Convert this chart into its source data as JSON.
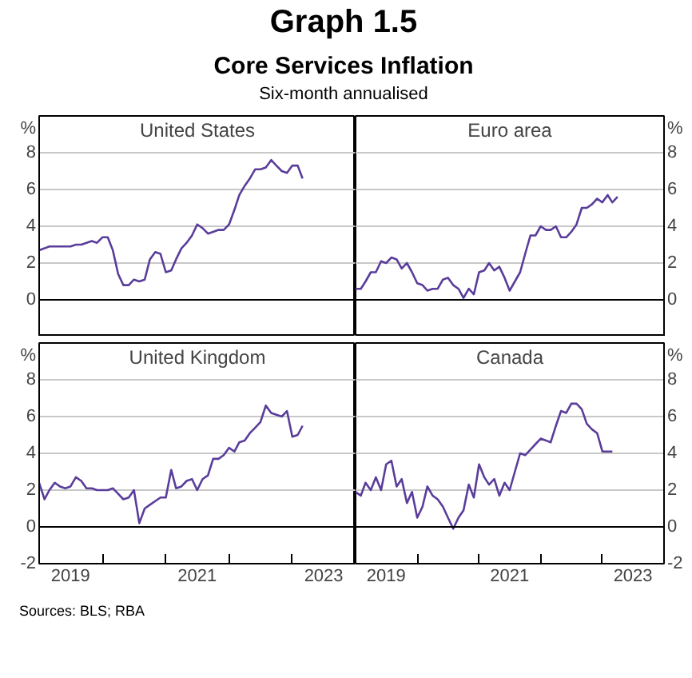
{
  "chart_data": [
    {
      "type": "other",
      "title": "Graph 1.5",
      "subtitle": "Core Services Inflation",
      "annotations": [
        "Six-month annualised",
        "Sources: BLS; RBA"
      ]
    },
    {
      "type": "line",
      "title": "United States",
      "ylabel": "%",
      "xlim": [
        "2019-01",
        "2024-01"
      ],
      "ylim": [
        -2,
        10
      ],
      "yticks": [
        0,
        2,
        4,
        6,
        8
      ],
      "grid": "y",
      "tick_labels": "y",
      "ref_lines": [
        {
          "axis": "y",
          "value": 0,
          "color": "#000000"
        }
      ],
      "x": [
        "2019-01",
        "2019-02",
        "2019-03",
        "2019-04",
        "2019-05",
        "2019-06",
        "2019-07",
        "2019-08",
        "2019-09",
        "2019-10",
        "2019-11",
        "2019-12",
        "2020-01",
        "2020-02",
        "2020-03",
        "2020-04",
        "2020-05",
        "2020-06",
        "2020-07",
        "2020-08",
        "2020-09",
        "2020-10",
        "2020-11",
        "2020-12",
        "2021-01",
        "2021-02",
        "2021-03",
        "2021-04",
        "2021-05",
        "2021-06",
        "2021-07",
        "2021-08",
        "2021-09",
        "2021-10",
        "2021-11",
        "2021-12",
        "2022-01",
        "2022-02",
        "2022-03",
        "2022-04",
        "2022-05",
        "2022-06",
        "2022-07",
        "2022-08",
        "2022-09",
        "2022-10",
        "2022-11",
        "2022-12",
        "2023-01",
        "2023-02",
        "2023-03"
      ],
      "series": [
        {
          "color": "#5a3d9a",
          "values": [
            2.7,
            2.8,
            2.9,
            2.9,
            2.9,
            2.9,
            2.9,
            3.0,
            3.0,
            3.1,
            3.2,
            3.1,
            3.4,
            3.4,
            2.7,
            1.4,
            0.8,
            0.8,
            1.1,
            1.0,
            1.1,
            2.2,
            2.6,
            2.5,
            1.5,
            1.6,
            2.2,
            2.8,
            3.1,
            3.5,
            4.1,
            3.9,
            3.6,
            3.7,
            3.8,
            3.8,
            4.1,
            4.9,
            5.7,
            6.2,
            6.6,
            7.1,
            7.1,
            7.2,
            7.6,
            7.3,
            7.0,
            6.9,
            7.3,
            7.3,
            6.6
          ]
        }
      ]
    },
    {
      "type": "line",
      "title": "Euro area",
      "ylabel": "%",
      "xlim": [
        "2019-01",
        "2024-01"
      ],
      "ylim": [
        -2,
        10
      ],
      "yticks": [
        0,
        2,
        4,
        6,
        8
      ],
      "grid": "y",
      "tick_labels": "y",
      "ref_lines": [
        {
          "axis": "y",
          "value": 0,
          "color": "#000000"
        }
      ],
      "x": [
        "2019-01",
        "2019-02",
        "2019-03",
        "2019-04",
        "2019-05",
        "2019-06",
        "2019-07",
        "2019-08",
        "2019-09",
        "2019-10",
        "2019-11",
        "2019-12",
        "2020-01",
        "2020-02",
        "2020-03",
        "2020-04",
        "2020-05",
        "2020-06",
        "2020-07",
        "2020-08",
        "2020-09",
        "2020-10",
        "2020-11",
        "2020-12",
        "2021-01",
        "2021-02",
        "2021-03",
        "2021-04",
        "2021-05",
        "2021-06",
        "2021-07",
        "2021-08",
        "2021-09",
        "2021-10",
        "2021-11",
        "2021-12",
        "2022-01",
        "2022-02",
        "2022-03",
        "2022-04",
        "2022-05",
        "2022-06",
        "2022-07",
        "2022-08",
        "2022-09",
        "2022-10",
        "2022-11",
        "2022-12",
        "2023-01",
        "2023-02",
        "2023-03",
        "2023-04"
      ],
      "series": [
        {
          "color": "#5a3d9a",
          "values": [
            0.6,
            0.6,
            1.0,
            1.5,
            1.5,
            2.1,
            2.0,
            2.3,
            2.2,
            1.7,
            2.0,
            1.5,
            0.9,
            0.8,
            0.5,
            0.6,
            0.6,
            1.1,
            1.2,
            0.8,
            0.6,
            0.1,
            0.6,
            0.3,
            1.5,
            1.6,
            2.0,
            1.6,
            1.8,
            1.2,
            0.5,
            1.0,
            1.5,
            2.5,
            3.5,
            3.5,
            4.0,
            3.8,
            3.8,
            4.0,
            3.4,
            3.4,
            3.7,
            4.1,
            5.0,
            5.0,
            5.2,
            5.5,
            5.3,
            5.7,
            5.3,
            5.6
          ]
        }
      ]
    },
    {
      "type": "line",
      "title": "United Kingdom",
      "ylabel": "%",
      "xlim": [
        "2019-01",
        "2024-01"
      ],
      "ylim": [
        -2,
        10
      ],
      "yticks": [
        -2,
        0,
        2,
        4,
        6,
        8
      ],
      "grid": "y",
      "xticks": [
        {
          "value": "2019-07",
          "label": "2019"
        },
        {
          "value": "2020-01",
          "label": null
        },
        {
          "value": "2021-01",
          "label": null
        },
        {
          "value": "2021-07",
          "label": "2021"
        },
        {
          "value": "2022-01",
          "label": null
        },
        {
          "value": "2023-01",
          "label": null
        },
        {
          "value": "2023-07",
          "label": "2023"
        }
      ],
      "ref_lines": [
        {
          "axis": "y",
          "value": 0,
          "color": "#000000"
        }
      ],
      "x": [
        "2019-01",
        "2019-02",
        "2019-03",
        "2019-04",
        "2019-05",
        "2019-06",
        "2019-07",
        "2019-08",
        "2019-09",
        "2019-10",
        "2019-11",
        "2019-12",
        "2020-01",
        "2020-02",
        "2020-03",
        "2020-04",
        "2020-05",
        "2020-06",
        "2020-07",
        "2020-08",
        "2020-09",
        "2020-10",
        "2020-11",
        "2020-12",
        "2021-01",
        "2021-02",
        "2021-03",
        "2021-04",
        "2021-05",
        "2021-06",
        "2021-07",
        "2021-08",
        "2021-09",
        "2021-10",
        "2021-11",
        "2021-12",
        "2022-01",
        "2022-02",
        "2022-03",
        "2022-04",
        "2022-05",
        "2022-06",
        "2022-07",
        "2022-08",
        "2022-09",
        "2022-10",
        "2022-11",
        "2022-12",
        "2023-01",
        "2023-02",
        "2023-03"
      ],
      "series": [
        {
          "color": "#5a3d9a",
          "values": [
            2.4,
            1.5,
            2.0,
            2.4,
            2.2,
            2.1,
            2.2,
            2.7,
            2.5,
            2.1,
            2.1,
            2.0,
            2.0,
            2.0,
            2.1,
            1.8,
            1.5,
            1.6,
            2.0,
            0.2,
            1.0,
            1.2,
            1.4,
            1.6,
            1.6,
            3.1,
            2.1,
            2.2,
            2.5,
            2.6,
            2.0,
            2.6,
            2.8,
            3.7,
            3.7,
            3.9,
            4.3,
            4.1,
            4.6,
            4.7,
            5.1,
            5.4,
            5.7,
            6.6,
            6.2,
            6.1,
            6.0,
            6.3,
            4.9,
            5.0,
            5.5
          ]
        }
      ]
    },
    {
      "type": "line",
      "title": "Canada",
      "ylabel": "%",
      "xlim": [
        "2019-01",
        "2024-01"
      ],
      "ylim": [
        -2,
        10
      ],
      "yticks": [
        -2,
        0,
        2,
        4,
        6,
        8
      ],
      "grid": "y",
      "xticks": [
        {
          "value": "2019-07",
          "label": "2019"
        },
        {
          "value": "2020-01",
          "label": null
        },
        {
          "value": "2021-01",
          "label": null
        },
        {
          "value": "2021-07",
          "label": "2021"
        },
        {
          "value": "2022-01",
          "label": null
        },
        {
          "value": "2023-01",
          "label": null
        },
        {
          "value": "2023-07",
          "label": "2023"
        }
      ],
      "ref_lines": [
        {
          "axis": "y",
          "value": 0,
          "color": "#000000"
        }
      ],
      "x": [
        "2019-01",
        "2019-02",
        "2019-03",
        "2019-04",
        "2019-05",
        "2019-06",
        "2019-07",
        "2019-08",
        "2019-09",
        "2019-10",
        "2019-11",
        "2019-12",
        "2020-01",
        "2020-02",
        "2020-03",
        "2020-04",
        "2020-05",
        "2020-06",
        "2020-07",
        "2020-08",
        "2020-09",
        "2020-10",
        "2020-11",
        "2020-12",
        "2021-01",
        "2021-02",
        "2021-03",
        "2021-04",
        "2021-05",
        "2021-06",
        "2021-07",
        "2021-08",
        "2021-09",
        "2021-10",
        "2021-11",
        "2021-12",
        "2022-01",
        "2022-02",
        "2022-03",
        "2022-04",
        "2022-05",
        "2022-06",
        "2022-07",
        "2022-08",
        "2022-09",
        "2022-10",
        "2022-11",
        "2022-12",
        "2023-01",
        "2023-02",
        "2023-03"
      ],
      "series": [
        {
          "color": "#5a3d9a",
          "values": [
            1.9,
            1.7,
            2.4,
            2.0,
            2.7,
            2.0,
            3.4,
            3.6,
            2.2,
            2.6,
            1.3,
            1.9,
            0.5,
            1.1,
            2.2,
            1.7,
            1.5,
            1.1,
            0.5,
            -0.1,
            0.5,
            0.9,
            2.3,
            1.6,
            3.4,
            2.7,
            2.3,
            2.6,
            1.7,
            2.4,
            2.0,
            3.0,
            4.0,
            3.9,
            4.2,
            4.5,
            4.8,
            4.7,
            4.6,
            5.5,
            6.3,
            6.2,
            6.7,
            6.7,
            6.4,
            5.6,
            5.3,
            5.1,
            4.1,
            4.1,
            4.1
          ]
        }
      ]
    }
  ]
}
